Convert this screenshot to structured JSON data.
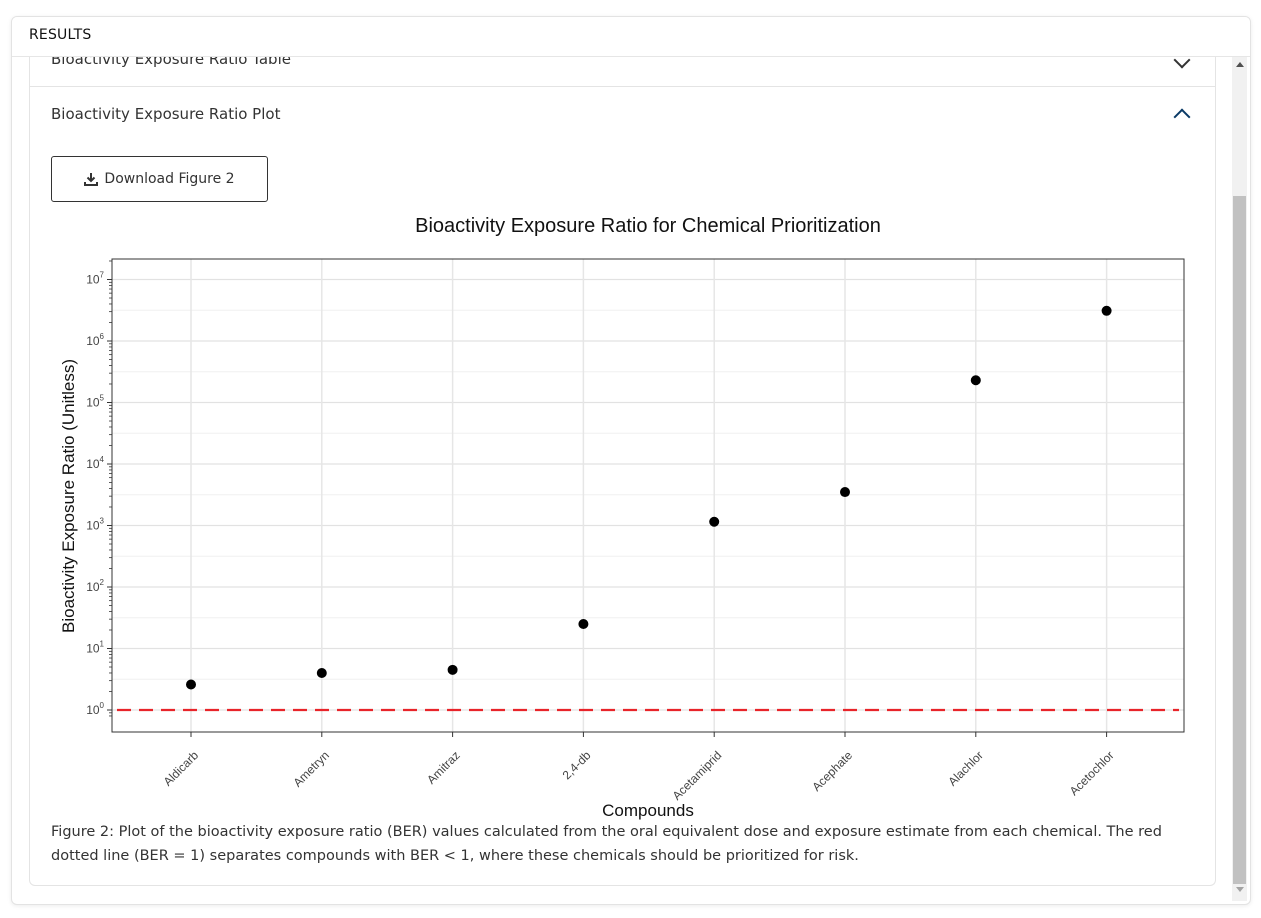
{
  "results": {
    "title": "RESULTS"
  },
  "accordion": {
    "item1": {
      "label": "Bioactivity Exposure Ratio Table"
    },
    "item2": {
      "label": "Bioactivity Exposure Ratio Plot"
    }
  },
  "download_button": {
    "label": "Download Figure 2"
  },
  "icons": {
    "download": "download-icon",
    "chevron_down": "chevron-down-icon",
    "chevron_up": "chevron-up-icon"
  },
  "chart_data": {
    "type": "scatter",
    "title": "Bioactivity Exposure Ratio for Chemical Prioritization",
    "xlabel": "Compounds",
    "ylabel": "Bioactivity Exposure Ratio (Unitless)",
    "y_scale": "log10",
    "ylim": [
      0.7,
      20000000
    ],
    "y_ticks": [
      {
        "base": "10",
        "exp": "0",
        "value": 1
      },
      {
        "base": "10",
        "exp": "1",
        "value": 10
      },
      {
        "base": "10",
        "exp": "2",
        "value": 100
      },
      {
        "base": "10",
        "exp": "3",
        "value": 1000
      },
      {
        "base": "10",
        "exp": "4",
        "value": 10000
      },
      {
        "base": "10",
        "exp": "5",
        "value": 100000
      },
      {
        "base": "10",
        "exp": "6",
        "value": 1000000
      },
      {
        "base": "10",
        "exp": "7",
        "value": 10000000
      }
    ],
    "categories": [
      "Aldicarb",
      "Ametryn",
      "Amitraz",
      "2,4-db",
      "Acetamiprid",
      "Acephate",
      "Alachlor",
      "Acetochlor"
    ],
    "values": [
      2.6,
      4.0,
      4.5,
      25,
      1150,
      3500,
      230000,
      3100000
    ],
    "reference_line": {
      "value": 1,
      "color": "#e8242a",
      "style": "dashed"
    },
    "point_color": "#000000",
    "grid": true
  },
  "caption": "Figure 2: Plot of the bioactivity exposure ratio (BER) values calculated from the oral equivalent dose and exposure estimate from each chemical. The red dotted line (BER = 1) separates compounds with BER < 1, where these chemicals should be prioritized for risk."
}
